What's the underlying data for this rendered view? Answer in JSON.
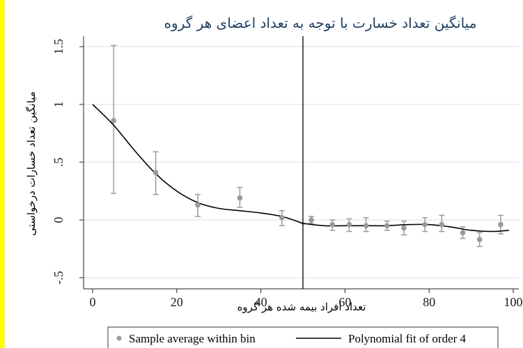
{
  "colors": {
    "page_background": "#ffffff",
    "edge_bar": "#ffff00",
    "title": "#1f3f63",
    "points": "#9a9a9a",
    "error_bars": "#9a9a9a",
    "fit_line": "#000000",
    "grid": "#dde7ee"
  },
  "chart_data": {
    "type": "scatter",
    "title": "میانگین تعداد خسارت با توجه به تعداد اعضای هر گروه",
    "xlabel": "تعداد افراد بیمه شده هر گروه",
    "ylabel": "میانگین تعداد خسارات درخواستی",
    "xlim": [
      -2,
      101
    ],
    "ylim": [
      -0.5,
      1.55
    ],
    "xticks": [
      0,
      20,
      40,
      60,
      80,
      100
    ],
    "xtick_labels": [
      "0",
      "20",
      "40",
      "60",
      "80",
      "100"
    ],
    "yticks": [
      -0.5,
      0,
      0.5,
      1,
      1.5
    ],
    "ytick_labels": [
      "-.5",
      "0",
      ".5",
      "1",
      "1.5"
    ],
    "grid": true,
    "cutoff_x": 50,
    "legend": [
      "Sample average within bin",
      "Polynomial fit of order 4"
    ],
    "legend_position": "bottom",
    "series": [
      {
        "name": "Sample average within bin",
        "type": "scatter",
        "x": [
          5,
          15,
          25,
          35,
          45,
          52,
          57,
          61,
          65,
          70,
          74,
          79,
          83,
          88,
          92,
          97
        ],
        "y": [
          0.86,
          0.41,
          0.13,
          0.19,
          0.02,
          0.0,
          -0.04,
          -0.04,
          -0.05,
          -0.05,
          -0.07,
          -0.04,
          -0.04,
          -0.11,
          -0.17,
          -0.04
        ],
        "err_low": [
          0.23,
          0.22,
          0.03,
          0.11,
          -0.05,
          -0.03,
          -0.09,
          -0.1,
          -0.1,
          -0.09,
          -0.13,
          -0.1,
          -0.1,
          -0.16,
          -0.23,
          -0.12
        ],
        "err_high": [
          1.51,
          0.59,
          0.22,
          0.28,
          0.08,
          0.03,
          0.0,
          0.01,
          0.02,
          -0.01,
          -0.01,
          0.02,
          0.04,
          -0.06,
          -0.11,
          0.04
        ]
      },
      {
        "name": "Polynomial fit of order 4",
        "type": "line",
        "x": [
          0,
          5,
          10,
          15,
          20,
          25,
          30,
          35,
          40,
          45,
          50,
          50,
          55,
          60,
          65,
          70,
          75,
          80,
          85,
          90,
          95,
          99
        ],
        "y": [
          1.0,
          0.82,
          0.6,
          0.4,
          0.25,
          0.15,
          0.1,
          0.08,
          0.06,
          0.03,
          -0.03,
          -0.03,
          -0.05,
          -0.05,
          -0.05,
          -0.05,
          -0.04,
          -0.04,
          -0.06,
          -0.09,
          -0.1,
          -0.09
        ]
      }
    ]
  }
}
